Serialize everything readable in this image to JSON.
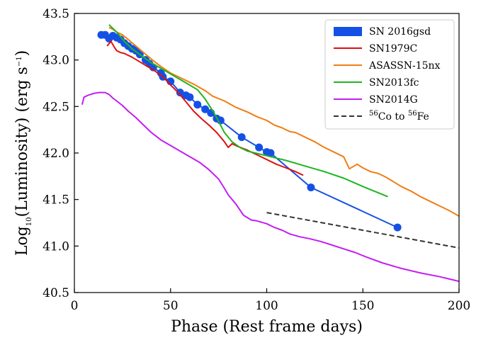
{
  "chart_data": {
    "type": "line",
    "xlabel": "Phase (Rest frame days)",
    "ylabel": {
      "prefix": "Log",
      "sub": "10",
      "middle": "(Luminosity)  (erg s",
      "sup": "−1",
      "suffix": ")"
    },
    "xlim": [
      0,
      200
    ],
    "ylim": [
      40.5,
      43.5
    ],
    "xticks": [
      0,
      50,
      100,
      150,
      200
    ],
    "yticks": [
      40.5,
      41.0,
      41.5,
      42.0,
      42.5,
      43.0,
      43.5
    ],
    "xtick_labels": [
      "0",
      "50",
      "100",
      "150",
      "200"
    ],
    "ytick_labels": [
      "40.5",
      "41.0",
      "41.5",
      "42.0",
      "42.5",
      "43.0",
      "43.5"
    ],
    "grid": false,
    "legend_position": "top-right",
    "series": [
      {
        "name": "SN 2016gsd",
        "color": "#1550e6",
        "marker": "circle",
        "line": "solid",
        "x": [
          14,
          16,
          18,
          20,
          22,
          24,
          26,
          28,
          30,
          32,
          34,
          37,
          39,
          41,
          45,
          46,
          50,
          55,
          58,
          60,
          64,
          68,
          71,
          74,
          76,
          87,
          96,
          100,
          102,
          123,
          168
        ],
        "y": [
          43.27,
          43.27,
          43.23,
          43.26,
          43.24,
          43.22,
          43.18,
          43.15,
          43.12,
          43.1,
          43.06,
          43.0,
          42.96,
          42.92,
          42.86,
          42.82,
          42.77,
          42.65,
          42.62,
          42.6,
          42.52,
          42.47,
          42.43,
          42.37,
          42.35,
          42.17,
          42.06,
          42.01,
          42.0,
          41.63,
          41.2
        ]
      },
      {
        "name": "SN1979C",
        "color": "#dd1111",
        "line": "solid",
        "x": [
          17,
          19,
          21,
          22,
          24,
          26,
          28,
          30,
          34,
          38,
          42,
          46,
          50,
          54,
          58,
          62,
          66,
          70,
          74,
          78,
          80,
          82,
          85,
          90,
          95,
          100,
          105,
          110,
          115,
          119
        ],
        "y": [
          43.15,
          43.2,
          43.13,
          43.1,
          43.08,
          43.07,
          43.05,
          43.03,
          42.98,
          42.93,
          42.88,
          42.82,
          42.73,
          42.65,
          42.55,
          42.45,
          42.37,
          42.3,
          42.22,
          42.12,
          42.06,
          42.1,
          42.07,
          42.03,
          41.98,
          41.93,
          41.88,
          41.84,
          41.8,
          41.76
        ]
      },
      {
        "name": "ASASSN-15nx",
        "color": "#f07d14",
        "line": "solid",
        "x": [
          18,
          20,
          22,
          25,
          28,
          32,
          36,
          40,
          45,
          50,
          56,
          62,
          68,
          72,
          78,
          84,
          90,
          95,
          100,
          104,
          108,
          112,
          115,
          120,
          125,
          130,
          135,
          140,
          143,
          147,
          150,
          154,
          158,
          162,
          166,
          170,
          175,
          180,
          185,
          190,
          195,
          200
        ],
        "y": [
          43.35,
          43.33,
          43.3,
          43.27,
          43.22,
          43.15,
          43.08,
          43.01,
          42.93,
          42.86,
          42.8,
          42.74,
          42.67,
          42.61,
          42.56,
          42.49,
          42.44,
          42.39,
          42.35,
          42.3,
          42.27,
          42.23,
          42.22,
          42.17,
          42.12,
          42.06,
          42.01,
          41.96,
          41.83,
          41.88,
          41.84,
          41.8,
          41.78,
          41.74,
          41.69,
          41.64,
          41.59,
          41.53,
          41.48,
          41.43,
          41.38,
          41.32
        ]
      },
      {
        "name": "SN2013fc",
        "color": "#1fb51f",
        "line": "solid",
        "x": [
          18,
          22,
          26,
          30,
          40,
          50,
          60,
          64,
          68,
          72,
          74,
          76,
          78,
          82,
          86,
          90,
          100,
          110,
          120,
          130,
          140,
          150,
          163
        ],
        "y": [
          43.38,
          43.3,
          43.2,
          43.12,
          42.97,
          42.85,
          42.73,
          42.68,
          42.58,
          42.45,
          42.38,
          42.3,
          42.22,
          42.12,
          42.06,
          42.02,
          41.97,
          41.92,
          41.86,
          41.8,
          41.73,
          41.64,
          41.53
        ]
      },
      {
        "name": "SN2014G",
        "color": "#c31ef2",
        "line": "solid",
        "x": [
          4,
          5,
          7,
          10,
          13,
          16,
          18,
          20,
          22,
          25,
          28,
          32,
          36,
          40,
          45,
          50,
          55,
          60,
          65,
          70,
          75,
          78,
          80,
          84,
          88,
          92,
          95,
          100,
          104,
          108,
          112,
          117,
          122,
          128,
          134,
          140,
          146,
          152,
          160,
          170,
          180,
          190,
          200
        ],
        "y": [
          42.52,
          42.6,
          42.62,
          42.64,
          42.65,
          42.65,
          42.63,
          42.59,
          42.56,
          42.51,
          42.45,
          42.38,
          42.3,
          42.22,
          42.14,
          42.08,
          42.02,
          41.96,
          41.9,
          41.82,
          41.72,
          41.62,
          41.55,
          41.45,
          41.33,
          41.28,
          41.27,
          41.24,
          41.2,
          41.17,
          41.13,
          41.1,
          41.08,
          41.05,
          41.01,
          40.97,
          40.93,
          40.88,
          40.82,
          40.76,
          40.71,
          40.67,
          40.62
        ]
      },
      {
        "name": "56Co to 56Fe",
        "color": "#333333",
        "line": "dashed",
        "x": [
          100,
          200
        ],
        "y": [
          41.36,
          40.98
        ]
      }
    ]
  },
  "legend": [
    {
      "name": "SN 2016gsd",
      "color": "#1550e6",
      "kind": "patch"
    },
    {
      "name": "SN1979C",
      "color": "#dd1111",
      "kind": "line"
    },
    {
      "name": "ASASSN-15nx",
      "color": "#f07d14",
      "kind": "line"
    },
    {
      "name": "SN2013fc",
      "color": "#1fb51f",
      "kind": "line"
    },
    {
      "name": "SN2014G",
      "color": "#c31ef2",
      "kind": "line"
    },
    {
      "name": "56Co to 56Fe",
      "color": "#333333",
      "kind": "dashed",
      "parts": {
        "sup1": "56",
        "t1": "Co to ",
        "sup2": "56",
        "t2": "Fe"
      }
    }
  ]
}
